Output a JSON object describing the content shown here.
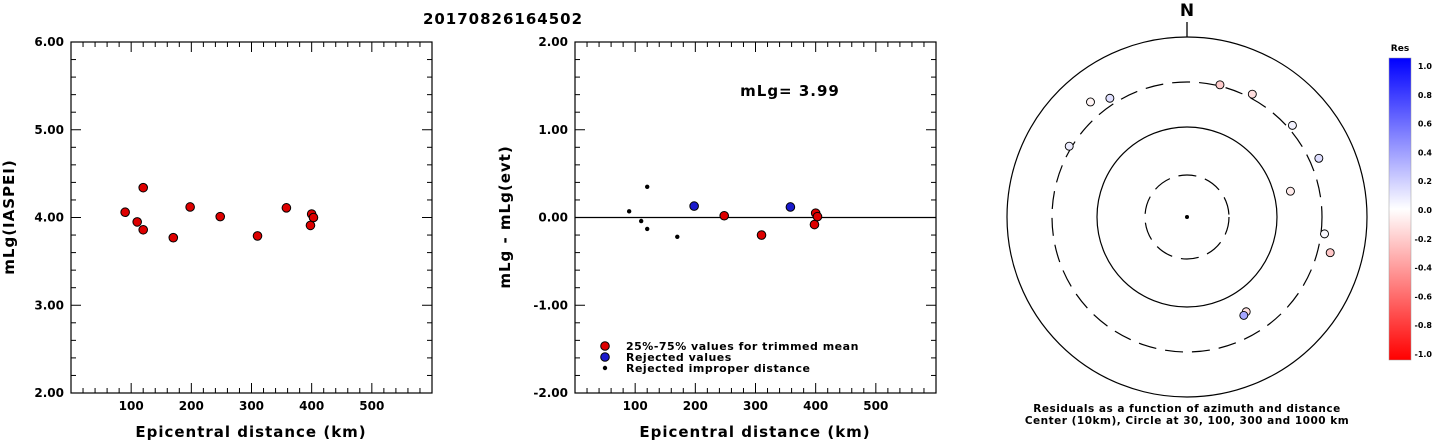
{
  "title": "20170826164502",
  "chart_data": [
    {
      "type": "scatter",
      "xlabel": "Epicentral distance (km)",
      "ylabel": "mLg(IASPEI)",
      "xlim": [
        0,
        600
      ],
      "ylim": [
        2.0,
        6.0
      ],
      "x_ticks": [
        "100",
        "200",
        "300",
        "400",
        "500"
      ],
      "y_ticks": [
        "2.00",
        "3.00",
        "4.00",
        "5.00",
        "6.00"
      ],
      "series": [
        {
          "color": "#dd0000",
          "points": [
            [
              90,
              4.06
            ],
            [
              110,
              3.95
            ],
            [
              120,
              4.34
            ],
            [
              120,
              3.86
            ],
            [
              170,
              3.77
            ],
            [
              198,
              4.12
            ],
            [
              248,
              4.01
            ],
            [
              310,
              3.79
            ],
            [
              358,
              4.11
            ],
            [
              398,
              3.91
            ],
            [
              400,
              4.04
            ],
            [
              403,
              4.0
            ]
          ]
        }
      ]
    },
    {
      "type": "scatter",
      "xlabel": "Epicentral distance (km)",
      "ylabel": "mLg - mLg(evt)",
      "xlim": [
        0,
        600
      ],
      "ylim": [
        -2.0,
        2.0
      ],
      "x_ticks": [
        "100",
        "200",
        "300",
        "400",
        "500"
      ],
      "y_ticks": [
        "-2.00",
        "-1.00",
        "0.00",
        "1.00",
        "2.00"
      ],
      "annotation": "mLg= 3.99",
      "legend_position": "bottom-left",
      "series": [
        {
          "name": "25%-75% values for trimmed mean",
          "color": "#dd0000",
          "points": [
            [
              248,
              0.02
            ],
            [
              310,
              -0.2
            ],
            [
              398,
              -0.08
            ],
            [
              400,
              0.05
            ],
            [
              403,
              0.01
            ]
          ]
        },
        {
          "name": "Rejected values",
          "color": "#1a1acc",
          "points": [
            [
              198,
              0.13
            ],
            [
              358,
              0.12
            ]
          ]
        },
        {
          "name": "Rejected improper distance",
          "color": "#000000",
          "points": [
            [
              90,
              0.07
            ],
            [
              110,
              -0.04
            ],
            [
              120,
              0.35
            ],
            [
              120,
              -0.13
            ],
            [
              170,
              -0.22
            ]
          ]
        }
      ]
    },
    {
      "type": "polar-scatter",
      "north_label": "N",
      "caption_line1": "Residuals as a function of azimuth and distance",
      "caption_line2": "Center (10km), Circle at 30, 100, 300 and 1000 km",
      "ring_distances_km": [
        30,
        100,
        300,
        1000
      ],
      "stations": [
        {
          "azimuth": 301,
          "distance_km": 320,
          "residual": 0.07
        },
        {
          "azimuth": 320,
          "distance_km": 450,
          "residual": -0.04
        },
        {
          "azimuth": 327,
          "distance_km": 358,
          "residual": 0.12
        },
        {
          "azimuth": 14,
          "distance_km": 310,
          "residual": -0.2
        },
        {
          "azimuth": 28,
          "distance_km": 335,
          "residual": -0.13
        },
        {
          "azimuth": 49,
          "distance_km": 340,
          "residual": 0.05
        },
        {
          "azimuth": 66,
          "distance_km": 385,
          "residual": 0.13
        },
        {
          "azimuth": 76,
          "distance_km": 150,
          "residual": -0.08
        },
        {
          "azimuth": 97,
          "distance_km": 330,
          "residual": 0.02
        },
        {
          "azimuth": 104,
          "distance_km": 420,
          "residual": -0.22
        },
        {
          "azimuth": 148,
          "distance_km": 170,
          "residual": -0.12
        },
        {
          "azimuth": 150,
          "distance_km": 178,
          "residual": 0.35
        }
      ]
    }
  ],
  "colorbar": {
    "title": "Res",
    "labels": [
      "1.0",
      "0.8",
      "0.6",
      "0.4",
      "0.2",
      "0.0",
      "-0.2",
      "-0.4",
      "-0.6",
      "-0.8",
      "-1.0"
    ],
    "color_positive": "#0000ff",
    "color_negative": "#ff0000"
  }
}
